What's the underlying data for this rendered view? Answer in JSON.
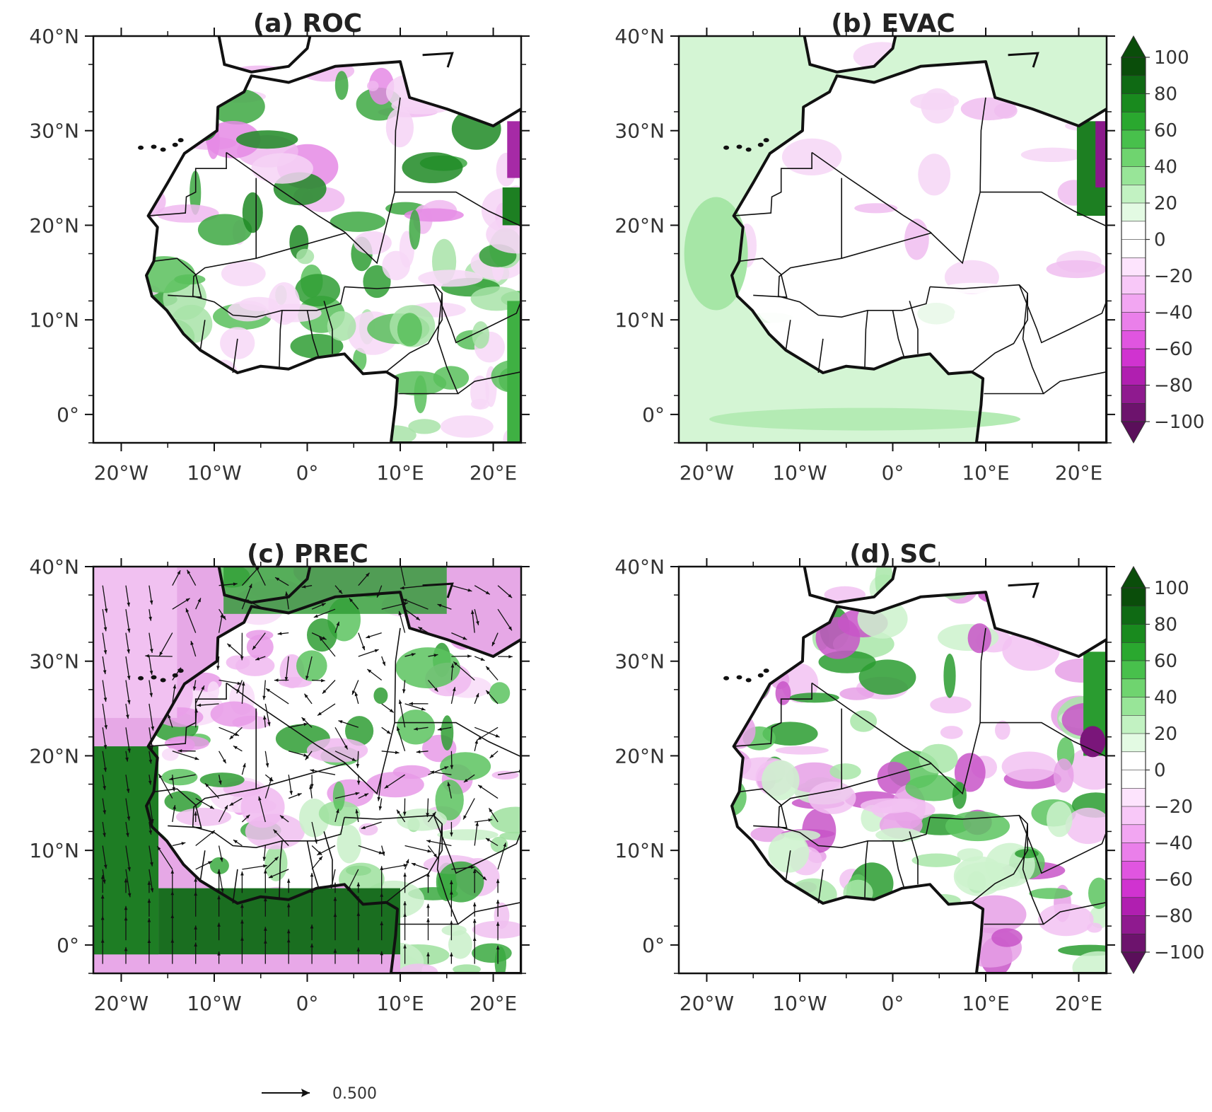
{
  "panels": [
    {
      "id": "a",
      "title": "(a) ROC",
      "theme": "mix",
      "ocean": "#ffffff",
      "vectors": false
    },
    {
      "id": "b",
      "title": "(b) EVAC",
      "theme": "evac",
      "ocean": "#d4f5d4",
      "vectors": false
    },
    {
      "id": "c",
      "title": "(c) PREC",
      "theme": "prec",
      "ocean": "#e6a8e6",
      "vectors": true
    },
    {
      "id": "d",
      "title": "(d) SC",
      "theme": "sc",
      "ocean": "#ffffff",
      "vectors": false
    }
  ],
  "axes": {
    "lat_labels": [
      "40°N",
      "30°N",
      "20°N",
      "10°N",
      "0°"
    ],
    "lat_values": [
      40,
      30,
      20,
      10,
      0
    ],
    "lon_labels": [
      "20°W",
      "10°W",
      "0°",
      "10°E",
      "20°E"
    ],
    "lon_values": [
      -20,
      -10,
      0,
      10,
      20
    ],
    "lon_range": [
      -23,
      23
    ],
    "lat_range": [
      -3,
      40
    ]
  },
  "colorbar": {
    "labels": [
      "100",
      "80",
      "60",
      "40",
      "20",
      "0",
      "−20",
      "−40",
      "−60",
      "−80",
      "−100"
    ],
    "values": [
      100,
      80,
      60,
      40,
      20,
      0,
      -20,
      -40,
      -60,
      -80,
      -100
    ],
    "colors": [
      "#0a4d0a",
      "#0f6a14",
      "#198a1e",
      "#2aa82f",
      "#48c04c",
      "#6fd46f",
      "#98e598",
      "#c2f2c2",
      "#e3fae3",
      "#ffffff",
      "#ffffff",
      "#fde4fd",
      "#f8c8f8",
      "#f2a6f2",
      "#ea7fea",
      "#e055e0",
      "#d033d0",
      "#b01fb0",
      "#8f1a8f",
      "#6d136d"
    ]
  },
  "reference_vector": {
    "label": "0.500"
  },
  "colors": {
    "land_green": "#2fa834",
    "land_magenta": "#d044d0",
    "border": "#111111"
  }
}
